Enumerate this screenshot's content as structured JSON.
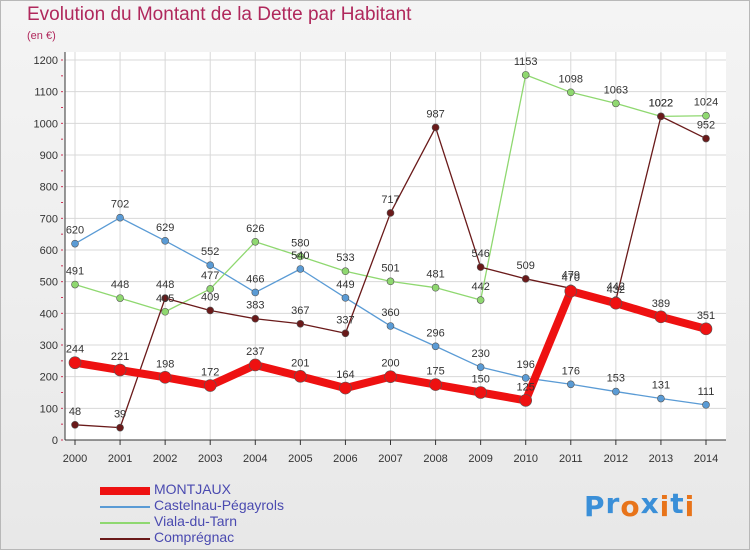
{
  "title": "Evolution du Montant de la Dette par Habitant",
  "unit": "(en €)",
  "logo": {
    "text": "Proxiti",
    "letters": [
      "P",
      "r",
      "o",
      "x",
      "i",
      "t",
      "i"
    ],
    "colors": [
      "#3a8fd8",
      "#3a8fd8",
      "#e8741a",
      "#3a8fd8",
      "#e8741a",
      "#3a8fd8",
      "#e8741a"
    ]
  },
  "colors": {
    "title": "#b0285c",
    "legend_text": "#4a4ab0",
    "MONTJAUX": "#ee1111",
    "Castelnau-Pégayrols": "#5a9bd5",
    "Viala-du-Tarn": "#8fd870",
    "Comprégnac": "#6a1a1a"
  },
  "chart_data": {
    "type": "line",
    "title": "Evolution du Montant de la Dette par Habitant",
    "xlabel": "",
    "ylabel": "(en €)",
    "ylim": [
      0,
      1200
    ],
    "yticks": [
      0,
      100,
      200,
      300,
      400,
      500,
      600,
      700,
      800,
      900,
      1000,
      1100,
      1200
    ],
    "grid": true,
    "legend_position": "bottom-left",
    "x": [
      "2000",
      "2001",
      "2002",
      "2003",
      "2004",
      "2005",
      "2006",
      "2007",
      "2008",
      "2009",
      "2010",
      "2011",
      "2012",
      "2013",
      "2014"
    ],
    "series": [
      {
        "name": "MONTJAUX",
        "values": [
          244,
          221,
          198,
          172,
          237,
          201,
          164,
          200,
          175,
          150,
          125,
          470,
          432,
          389,
          351
        ]
      },
      {
        "name": "Castelnau-Pégayrols",
        "values": [
          620,
          702,
          629,
          552,
          466,
          540,
          449,
          360,
          296,
          230,
          196,
          176,
          153,
          131,
          111
        ]
      },
      {
        "name": "Viala-du-Tarn",
        "values": [
          491,
          448,
          405,
          477,
          626,
          580,
          533,
          501,
          481,
          442,
          1153,
          1098,
          1063,
          1022,
          1024
        ]
      },
      {
        "name": "Comprégnac",
        "values": [
          48,
          39,
          448,
          409,
          383,
          367,
          337,
          717,
          987,
          546,
          509,
          479,
          442,
          1022,
          952
        ]
      }
    ]
  }
}
